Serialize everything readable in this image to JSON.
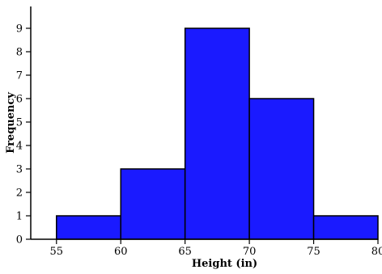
{
  "chart_data": {
    "type": "bar",
    "subtype": "histogram",
    "bins": [
      {
        "start": 55,
        "end": 60,
        "count": 1
      },
      {
        "start": 60,
        "end": 65,
        "count": 3
      },
      {
        "start": 65,
        "end": 70,
        "count": 9
      },
      {
        "start": 70,
        "end": 75,
        "count": 6
      },
      {
        "start": 75,
        "end": 80,
        "count": 1
      }
    ],
    "xlabel": "Height (in)",
    "ylabel": "Frequency",
    "xlim": [
      53,
      80
    ],
    "ylim": [
      0,
      10
    ],
    "x_ticks": [
      55,
      60,
      65,
      70,
      75,
      80
    ],
    "y_ticks": [
      0,
      1,
      2,
      3,
      4,
      5,
      6,
      7,
      8,
      9
    ],
    "grid": false,
    "legend": "none",
    "colors": {
      "bar_fill": "#1a1aff",
      "bar_stroke": "#000000",
      "axis": "#000000"
    }
  }
}
